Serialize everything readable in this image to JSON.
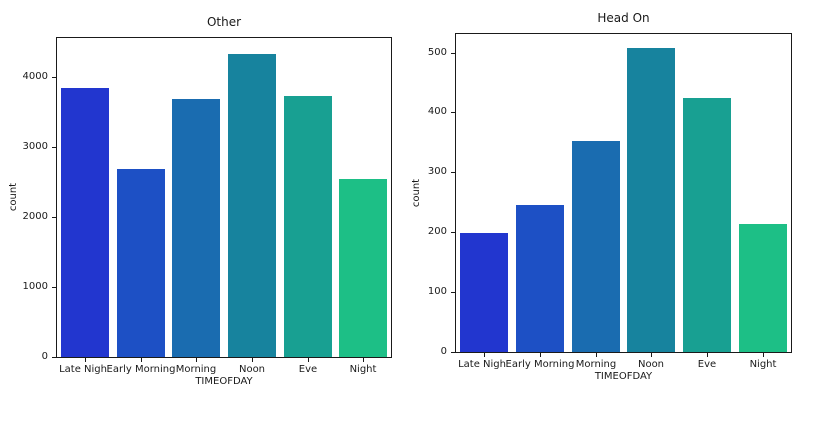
{
  "figure": {
    "background_color": "#ffffff",
    "text_color": "#1a1a1a"
  },
  "chart_data": [
    {
      "type": "bar",
      "title": "Other",
      "xlabel": "TIMEOFDAY",
      "ylabel": "count",
      "categories": [
        "Late Night",
        "Early Morning",
        "Morning",
        "Noon",
        "Eve",
        "Night"
      ],
      "values": [
        3835,
        2680,
        3680,
        4320,
        3725,
        2535
      ],
      "bar_colors": [
        "#2236cf",
        "#1d50c5",
        "#1a6cb0",
        "#17839e",
        "#18a092",
        "#1dbf86"
      ],
      "yticks": [
        0,
        1000,
        2000,
        3000,
        4000
      ],
      "ylim": [
        0,
        4550
      ],
      "grid": false,
      "legend": null
    },
    {
      "type": "bar",
      "title": "Head On",
      "xlabel": "TIMEOFDAY",
      "ylabel": "count",
      "categories": [
        "Late Night",
        "Early Morning",
        "Morning",
        "Noon",
        "Eve",
        "Night"
      ],
      "values": [
        199,
        246,
        352,
        507,
        424,
        214
      ],
      "bar_colors": [
        "#2236cf",
        "#1d50c5",
        "#1a6cb0",
        "#17839e",
        "#18a092",
        "#1dbf86"
      ],
      "yticks": [
        0,
        100,
        200,
        300,
        400,
        500
      ],
      "ylim": [
        0,
        531
      ],
      "grid": false,
      "legend": null
    }
  ]
}
